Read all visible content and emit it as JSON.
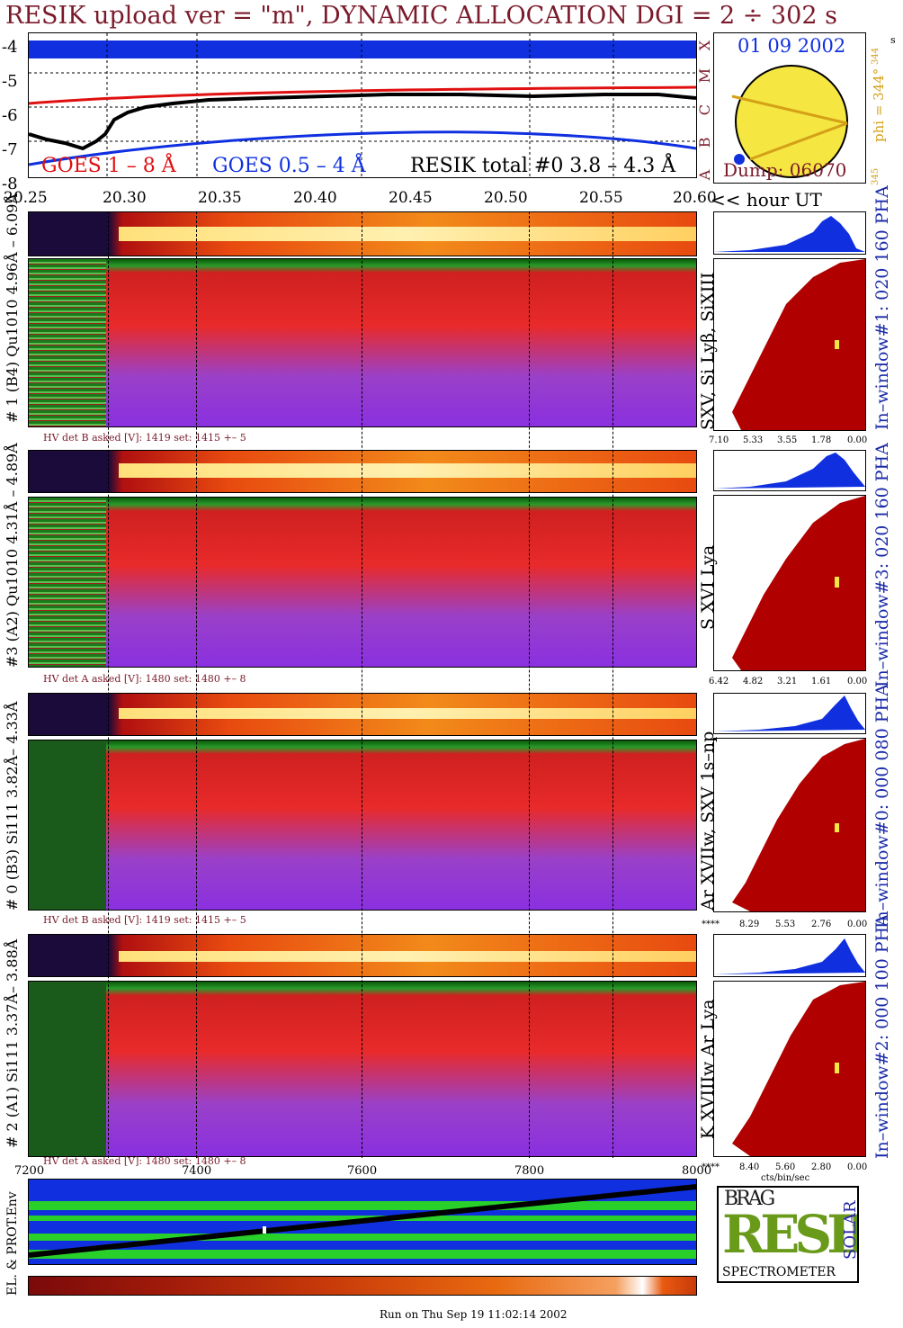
{
  "header": {
    "title": "RESIK upload ver = \"m\", DYNAMIC ALLOCATION  DGI =   2 ÷ 302 s",
    "corner_mark": "s"
  },
  "goes_plot": {
    "y_ticks": [
      "-4",
      "-5",
      "-6",
      "-7",
      "-8"
    ],
    "class_letters": [
      "X",
      "M",
      "C",
      "B",
      "A"
    ],
    "legend_goes_long": "GOES 1 – 8 Å",
    "legend_goes_short": "GOES 0.5 – 4 Å",
    "legend_resik": "RESIK total #0  3.8 – 4.3 Å",
    "colors": {
      "goes_long": "#e01010",
      "goes_short": "#1030e0",
      "resik": "#000000",
      "band": "#1030e0"
    }
  },
  "sun_panel": {
    "date": "01 09 2002",
    "dump": "Dump: 06070",
    "phi_label": "phi = 344°",
    "phi_top": "344",
    "phi_bottom": "345"
  },
  "time_axis": {
    "labels": [
      "20.25",
      "20.30",
      "20.35",
      "20.40",
      "20.45",
      "20.50",
      "20.55",
      "20.60"
    ],
    "unit": "<< hour UT"
  },
  "channels": [
    {
      "left_label": "# 1 (B4) Qu1010  4.96Å – 6.09Å",
      "hv": "HV det B asked [V]:  1419 set:  1415 +–    5",
      "line_label": "SXV, Si Lyβ, SiXIII",
      "pha_label": "In–window#1:  020 160 PHA",
      "pha_ticks": [
        "7.10",
        "5.33",
        "3.55",
        "1.78",
        "0.00"
      ]
    },
    {
      "left_label": "#3 (A2) Qu1010  4.31Å – 4.89Å",
      "hv": "HV det A asked [V]:  1480 set:  1480 +–    8",
      "line_label": "S XVI Lya",
      "pha_label": "In–window#3:  020 160 PHA",
      "pha_ticks": [
        "6.42",
        "4.82",
        "3.21",
        "1.61",
        "0.00"
      ]
    },
    {
      "left_label": "# 0 (B3) Si111  3.82Å– 4.33Å",
      "hv": "HV det B asked [V]:  1419 set:  1415 +–    5",
      "line_label": "Ar XVIIw,  SXV 1s–np",
      "pha_label": "In–window#0:  000 080 PHA",
      "pha_ticks": [
        "****",
        "8.29",
        "5.53",
        "2.76",
        "0.00"
      ]
    },
    {
      "left_label": "# 2 (A1) Si111  3.37Å– 3.88Å",
      "hv": "HV det A asked [V]:  1480 set:  1480 +–    8",
      "line_label": "K XVIIIw   Ar Lya",
      "pha_label": "In–window#2:  000 100 PHA",
      "pha_ticks": [
        "****",
        "8.40",
        "5.60",
        "2.80",
        "0.00"
      ],
      "pha_unit": "cts/bin/sec"
    }
  ],
  "env_axis": {
    "labels": [
      "7200",
      "7400",
      "7600",
      "7800",
      "8000"
    ],
    "side_label": "EL. & PROT.Env"
  },
  "logo": {
    "top": "BRAG",
    "main": "RESIK",
    "side": "SOLAR",
    "bottom": "SPECTROMETER"
  },
  "footer": {
    "run_on": "Run on Thu Sep 19 11:02:14 2002"
  }
}
